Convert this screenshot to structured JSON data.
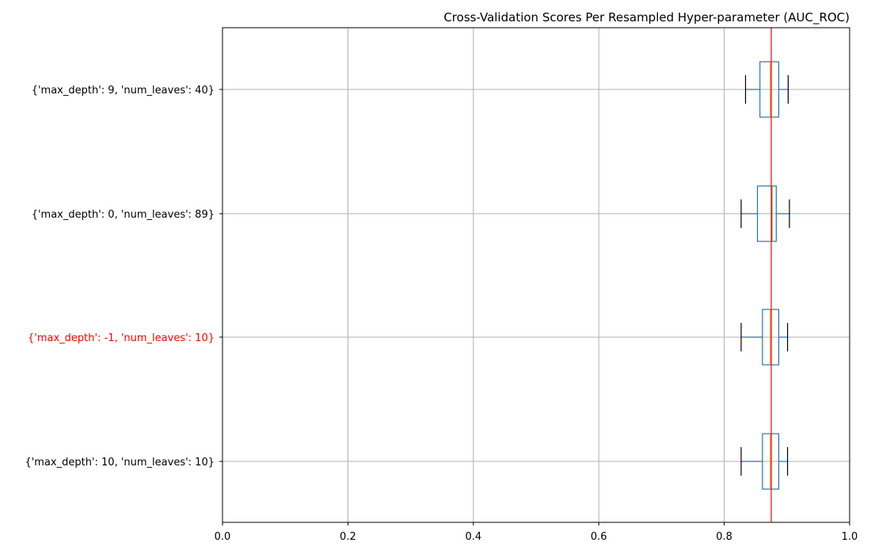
{
  "chart_data": {
    "type": "boxplot",
    "orientation": "horizontal",
    "title": "Cross-Validation Scores Per Resampled Hyper-parameter (AUC_ROC)",
    "xlabel": "",
    "ylabel": "",
    "xlim": [
      0.0,
      1.0
    ],
    "xticks": [
      "0.0",
      "0.2",
      "0.4",
      "0.6",
      "0.8",
      "1.0"
    ],
    "grid": true,
    "reference_line": {
      "value": 0.875,
      "color": "#ff0000"
    },
    "colors": {
      "box": "#1f77b4",
      "median_default": "#ff7f0e",
      "median_alt": "#2ca02c",
      "cap": "#000000",
      "grid": "#b0b0b0",
      "highlight_label": "#ff0000"
    },
    "categories": [
      {
        "label": "{'max_depth': 9, 'num_leaves': 40}",
        "highlight": false,
        "whisker_low": 0.834,
        "q1": 0.857,
        "median": 0.874,
        "q3": 0.887,
        "whisker_high": 0.902,
        "median_color": "#ff7f0e"
      },
      {
        "label": "{'max_depth': 0, 'num_leaves': 89}",
        "highlight": false,
        "whisker_low": 0.827,
        "q1": 0.853,
        "median": 0.876,
        "q3": 0.883,
        "whisker_high": 0.904,
        "median_color": "#2ca02c"
      },
      {
        "label": "{'max_depth': -1, 'num_leaves': 10}",
        "highlight": true,
        "whisker_low": 0.827,
        "q1": 0.861,
        "median": 0.874,
        "q3": 0.887,
        "whisker_high": 0.901,
        "median_color": "#ff7f0e"
      },
      {
        "label": "{'max_depth': 10, 'num_leaves': 10}",
        "highlight": false,
        "whisker_low": 0.827,
        "q1": 0.861,
        "median": 0.874,
        "q3": 0.887,
        "whisker_high": 0.901,
        "median_color": "#ff7f0e"
      }
    ]
  }
}
